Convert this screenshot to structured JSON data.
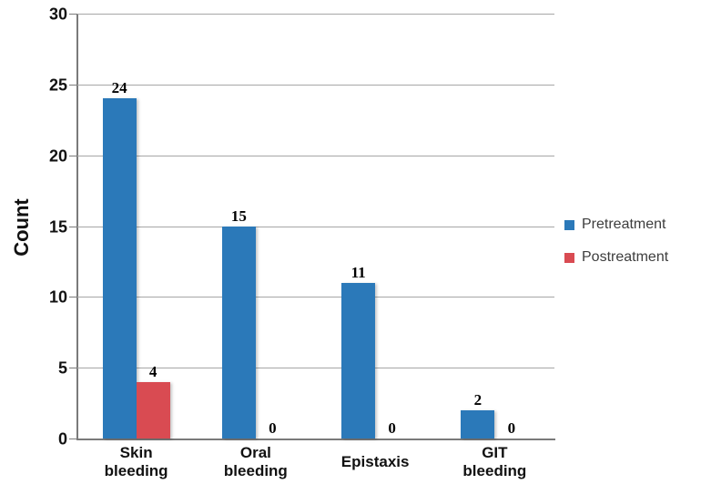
{
  "chart_data": {
    "type": "bar",
    "title": "",
    "xlabel": "",
    "ylabel": "Count",
    "categories": [
      "Skin bleeding",
      "Oral bleeding",
      "Epistaxis",
      "GIT bleeding"
    ],
    "series": [
      {
        "name": "Pretreatment",
        "color": "#2b79b9",
        "values": [
          24,
          15,
          11,
          2
        ]
      },
      {
        "name": "Postreatment",
        "color": "#d94b52",
        "values": [
          4,
          0,
          0,
          0
        ]
      }
    ],
    "ylim": [
      0,
      30
    ],
    "yticks": [
      0,
      5,
      10,
      15,
      20,
      25,
      30
    ],
    "grid": true,
    "legend_position": "right",
    "value_labels": true
  },
  "colors": {
    "gridline": "#a6a6a6",
    "axis": "#7a7a7a",
    "tick_text": "#111111",
    "legend_text": "#3d3d3d",
    "background": "#ffffff"
  }
}
